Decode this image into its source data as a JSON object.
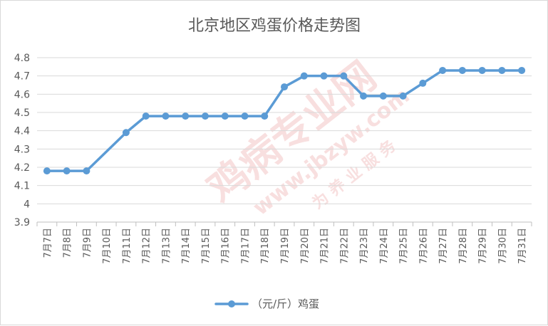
{
  "chart_data": {
    "type": "line",
    "title": "北京地区鸡蛋价格走势图",
    "xlabel": "",
    "ylabel": "",
    "categories": [
      "7月7日",
      "7月8日",
      "7月9日",
      "7月10日",
      "7月11日",
      "7月12日",
      "7月13日",
      "7月14日",
      "7月15日",
      "7月16日",
      "7月17日",
      "7月18日",
      "7月19日",
      "7月20日",
      "7月21日",
      "7月22日",
      "7月23日",
      "7月24日",
      "7月25日",
      "7月26日",
      "7月27日",
      "7月28日",
      "7月29日",
      "7月30日",
      "7月31日"
    ],
    "series": [
      {
        "name": "（元/斤）鸡蛋",
        "color": "#5b9bd5",
        "values": [
          4.18,
          4.18,
          4.18,
          null,
          4.39,
          4.48,
          4.48,
          4.48,
          4.48,
          4.48,
          4.48,
          4.48,
          4.64,
          4.7,
          4.7,
          4.7,
          4.59,
          4.59,
          4.59,
          4.66,
          4.73,
          4.73,
          4.73,
          4.73,
          4.73
        ]
      }
    ],
    "ylim": [
      3.9,
      4.8
    ],
    "yticks": [
      "3.9",
      "4",
      "4.1",
      "4.2",
      "4.3",
      "4.4",
      "4.5",
      "4.6",
      "4.7",
      "4.8"
    ],
    "grid": true,
    "legend_position": "bottom",
    "watermark": {
      "lines": [
        "鸡病专业网",
        "www.jbzyw.com",
        "为 养 业 服 务"
      ],
      "color": "#f2c4c4"
    }
  }
}
